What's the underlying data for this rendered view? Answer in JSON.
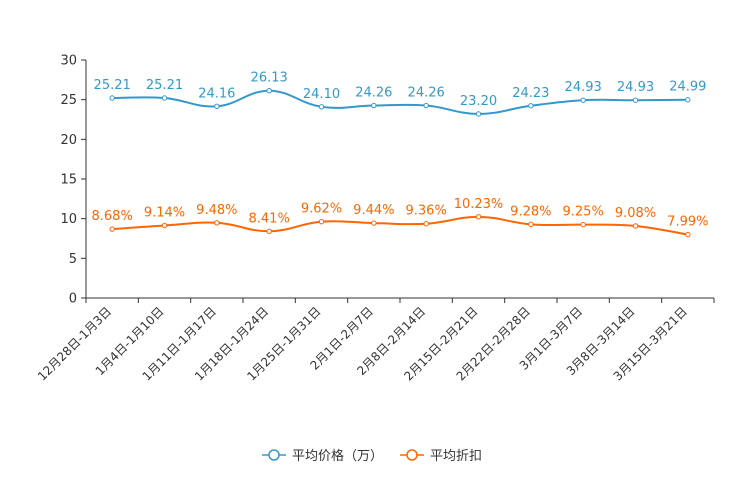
{
  "chart_data": {
    "type": "line",
    "categories": [
      "12月28日-1月3日",
      "1月4日-1月10日",
      "1月11日-1月17日",
      "1月18日-1月24日",
      "1月25日-1月31日",
      "2月1日-2月7日",
      "2月8日-2月14日",
      "2月15日-2月21日",
      "2月22日-2月28日",
      "3月1日-3月7日",
      "3月8日-3月14日",
      "3月15日-3月21日"
    ],
    "ylim": [
      0,
      30
    ],
    "yticks": [
      0,
      5,
      10,
      15,
      20,
      25,
      30
    ],
    "legend_position": "bottom-center",
    "series": [
      {
        "name": "平均价格（万）",
        "color": "#3399cc",
        "values": [
          25.21,
          25.21,
          24.16,
          26.13,
          24.1,
          24.26,
          24.26,
          23.2,
          24.23,
          24.93,
          24.93,
          24.99
        ],
        "labels": [
          "25.21",
          "25.21",
          "24.16",
          "26.13",
          "24.10",
          "24.26",
          "24.26",
          "23.20",
          "24.23",
          "24.93",
          "24.93",
          "24.99"
        ]
      },
      {
        "name": "平均折扣",
        "color": "#ff6600",
        "values": [
          8.68,
          9.14,
          9.48,
          8.41,
          9.62,
          9.44,
          9.36,
          10.23,
          9.28,
          9.25,
          9.08,
          7.99
        ],
        "labels": [
          "8.68%",
          "9.14%",
          "9.48%",
          "8.41%",
          "9.62%",
          "9.44%",
          "9.36%",
          "10.23%",
          "9.28%",
          "9.25%",
          "9.08%",
          "7.99%"
        ]
      }
    ]
  }
}
